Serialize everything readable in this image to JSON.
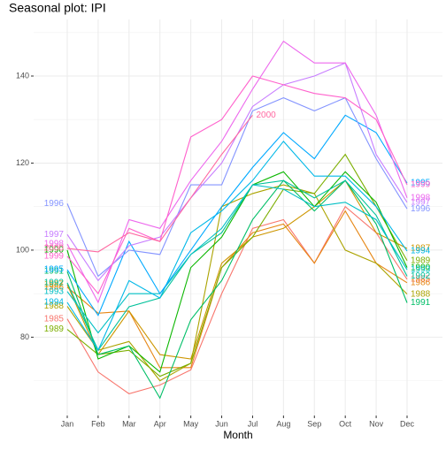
{
  "chart_data": {
    "type": "line",
    "title": "Seasonal plot: IPI",
    "x_label": "Month",
    "categories": [
      "Jan",
      "Feb",
      "Mar",
      "Apr",
      "May",
      "Jun",
      "Jul",
      "Aug",
      "Sep",
      "Oct",
      "Nov",
      "Dec"
    ],
    "ylim": [
      62,
      153
    ],
    "yticks": [
      80,
      100,
      120,
      140
    ],
    "grid": true,
    "series": [
      {
        "name": "1985",
        "color": "#F8766D",
        "values": [
          84.2,
          72,
          67,
          69,
          72.5,
          90,
          105,
          107,
          97,
          110,
          104,
          93.3
        ]
      },
      {
        "name": "1986",
        "color": "#E68613",
        "values": [
          91.5,
          85.5,
          86,
          73,
          73,
          96,
          104,
          106,
          97,
          109,
          97,
          92.5
        ]
      },
      {
        "name": "1987",
        "color": "#CD9600",
        "values": [
          92.1,
          76,
          86,
          76,
          75,
          97,
          103,
          105,
          110,
          116,
          104,
          100.4
        ]
      },
      {
        "name": "1988",
        "color": "#ABA300",
        "values": [
          87.1,
          77,
          79,
          70,
          74,
          110,
          113,
          115,
          113,
          100,
          97,
          89.9
        ]
      },
      {
        "name": "1989",
        "color": "#7CAE00",
        "values": [
          81.8,
          76,
          77,
          71,
          74,
          96,
          103,
          114,
          113,
          122,
          110,
          97.6
        ]
      },
      {
        "name": "1990",
        "color": "#0CB702",
        "values": [
          100,
          75,
          78,
          72,
          96,
          103,
          115,
          118,
          110,
          118,
          111,
          96
        ]
      },
      {
        "name": "1991",
        "color": "#00BE67",
        "values": [
          95.1,
          76,
          78,
          66,
          84,
          93,
          107,
          116,
          109,
          116,
          106,
          87.9
        ]
      },
      {
        "name": "1992",
        "color": "#00C19A",
        "values": [
          92.5,
          77,
          87,
          89,
          99,
          104,
          115,
          116,
          112,
          116,
          108,
          94
        ]
      },
      {
        "name": "1993",
        "color": "#00BFC4",
        "values": [
          90.5,
          81,
          90,
          90,
          99,
          105,
          115,
          114,
          110,
          111,
          107,
          95.5
        ]
      },
      {
        "name": "1994",
        "color": "#00B8E7",
        "values": [
          88,
          77,
          93,
          89,
          104,
          109,
          116,
          125,
          117,
          117,
          110,
          99.8
        ]
      },
      {
        "name": "1995",
        "color": "#00A9FF",
        "values": [
          95.5,
          85,
          102,
          90,
          100,
          110,
          119,
          127,
          121,
          131,
          127,
          115.4
        ]
      },
      {
        "name": "1996",
        "color": "#8494FF",
        "values": [
          110.7,
          94,
          100,
          99,
          115,
          115,
          132,
          135,
          132,
          135,
          121,
          109.5
        ]
      },
      {
        "name": "1997",
        "color": "#C77CFF",
        "values": [
          103.6,
          93,
          101,
          103,
          112,
          120,
          133,
          138,
          140,
          143,
          122,
          111
        ]
      },
      {
        "name": "1998",
        "color": "#ED68ED",
        "values": [
          101.4,
          88,
          107,
          105,
          116,
          125,
          137,
          148,
          143,
          143,
          131,
          112
        ]
      },
      {
        "name": "1999",
        "color": "#FF61CC",
        "values": [
          98.6,
          90,
          105,
          102,
          126,
          130,
          140,
          138,
          136,
          135,
          130,
          115
        ]
      },
      {
        "name": "2000",
        "color": "#FF68A1",
        "values": [
          100.4,
          99.6,
          104,
          102,
          112,
          122,
          131,
          null,
          null,
          null,
          null,
          null
        ]
      }
    ]
  }
}
